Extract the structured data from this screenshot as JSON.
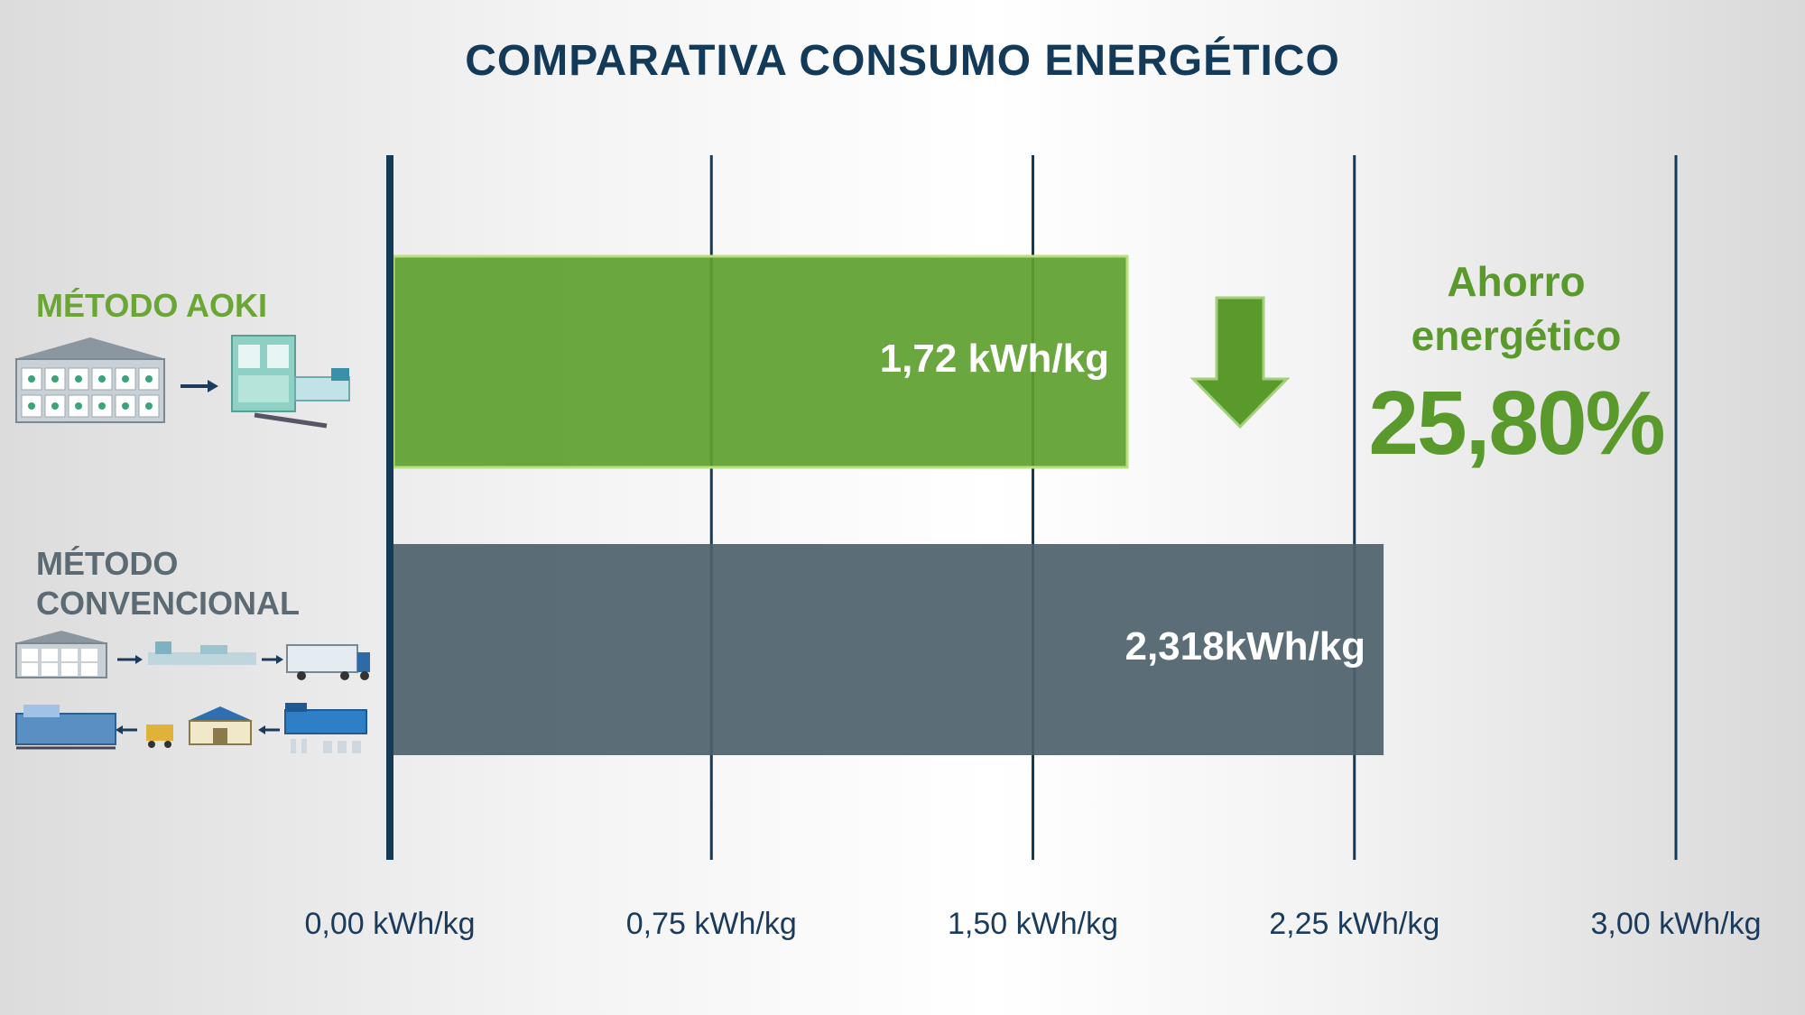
{
  "title": "COMPARATIVA CONSUMO ENERGÉTICO",
  "labels": {
    "aoki": "MÉTODO AOKI",
    "conventional_line1": "MÉTODO",
    "conventional_line2": "CONVENCIONAL"
  },
  "savings": {
    "line1": "Ahorro",
    "line2": "energético",
    "value": "25,80%"
  },
  "colors": {
    "title": "#143a5a",
    "aoki_bar": "#5d9f2e",
    "conventional_bar": "#4d626b",
    "axis": "#143a5a",
    "arrow": "#5a9a2c"
  },
  "icons": [
    "warehouse-icon",
    "arrow-right-icon",
    "blow-molding-machine-icon",
    "truck-icon",
    "factory-icon",
    "injection-machine-icon",
    "arrow-down-icon"
  ],
  "chart_data": {
    "type": "bar",
    "orientation": "horizontal",
    "categories": [
      "MÉTODO AOKI",
      "MÉTODO CONVENCIONAL"
    ],
    "values": [
      1.72,
      2.318
    ],
    "value_labels": [
      "1,72 kWh/kg",
      "2,318kWh/kg"
    ],
    "xlim": [
      0,
      3.0
    ],
    "ticks": [
      0,
      0.75,
      1.5,
      2.25,
      3.0
    ],
    "tick_labels": [
      "0,00 kWh/kg",
      "0,75 kWh/kg",
      "1,50 kWh/kg",
      "2,25 kWh/kg",
      "3,00 kWh/kg"
    ],
    "grid": true,
    "legend": "none"
  }
}
